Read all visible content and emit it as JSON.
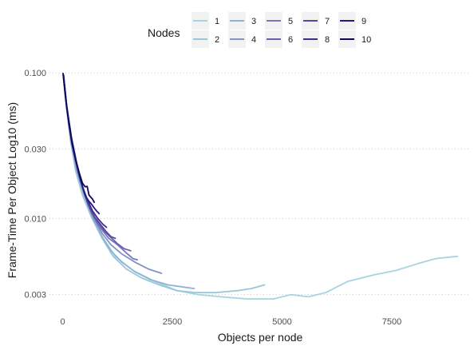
{
  "chart_data": {
    "type": "line",
    "xlabel": "Objects per node",
    "ylabel": "Frame-Time Per Object Log10 (ms)",
    "y_scale": "log10",
    "xlim": [
      -300,
      9300
    ],
    "ylim": [
      0.0026,
      0.104
    ],
    "x_ticks": [
      0,
      2500,
      5000,
      7500
    ],
    "x_tick_labels": [
      "0",
      "2500",
      "5000",
      "7500"
    ],
    "y_ticks": [
      0.003,
      0.01,
      0.03,
      0.1
    ],
    "y_tick_labels": [
      "0.003",
      "0.010",
      "0.030",
      "0.100"
    ],
    "grid": "horizontal-dotted",
    "legend": {
      "title": "Nodes",
      "position": "top"
    },
    "series": [
      {
        "name": "1",
        "color": "#a6d4e0",
        "points": [
          [
            20,
            0.092
          ],
          [
            80,
            0.06
          ],
          [
            180,
            0.035
          ],
          [
            300,
            0.022
          ],
          [
            450,
            0.015
          ],
          [
            650,
            0.0105
          ],
          [
            900,
            0.0075
          ],
          [
            1200,
            0.0055
          ],
          [
            1600,
            0.0044
          ],
          [
            2100,
            0.0037
          ],
          [
            2600,
            0.0032
          ],
          [
            3100,
            0.003
          ],
          [
            3600,
            0.0029
          ],
          [
            4200,
            0.0028
          ],
          [
            4800,
            0.0028
          ],
          [
            5200,
            0.003
          ],
          [
            5600,
            0.0029
          ],
          [
            6000,
            0.0031
          ],
          [
            6500,
            0.0037
          ],
          [
            7100,
            0.0041
          ],
          [
            7600,
            0.0044
          ],
          [
            8100,
            0.0049
          ],
          [
            8500,
            0.0053
          ],
          [
            9000,
            0.0055
          ]
        ]
      },
      {
        "name": "2",
        "color": "#9ac6db",
        "points": [
          [
            20,
            0.093
          ],
          [
            80,
            0.06
          ],
          [
            180,
            0.034
          ],
          [
            300,
            0.021
          ],
          [
            450,
            0.0145
          ],
          [
            650,
            0.0103
          ],
          [
            900,
            0.0073
          ],
          [
            1150,
            0.0055
          ],
          [
            1450,
            0.0045
          ],
          [
            1800,
            0.0039
          ],
          [
            2200,
            0.0035
          ],
          [
            2600,
            0.0032
          ],
          [
            3000,
            0.0031
          ],
          [
            3500,
            0.0031
          ],
          [
            4000,
            0.0032
          ],
          [
            4300,
            0.0033
          ],
          [
            4600,
            0.0035
          ]
        ]
      },
      {
        "name": "3",
        "color": "#8eb3d3",
        "points": [
          [
            20,
            0.094
          ],
          [
            90,
            0.058
          ],
          [
            200,
            0.033
          ],
          [
            330,
            0.021
          ],
          [
            500,
            0.0142
          ],
          [
            700,
            0.0098
          ],
          [
            900,
            0.0075
          ],
          [
            1100,
            0.006
          ],
          [
            1350,
            0.005
          ],
          [
            1650,
            0.0043
          ],
          [
            2000,
            0.0038
          ],
          [
            2400,
            0.0035
          ],
          [
            2700,
            0.0034
          ],
          [
            3000,
            0.0033
          ]
        ]
      },
      {
        "name": "4",
        "color": "#8293c7",
        "points": [
          [
            20,
            0.094
          ],
          [
            90,
            0.058
          ],
          [
            200,
            0.033
          ],
          [
            330,
            0.021
          ],
          [
            500,
            0.0144
          ],
          [
            700,
            0.0101
          ],
          [
            900,
            0.0079
          ],
          [
            1100,
            0.0066
          ],
          [
            1350,
            0.0057
          ],
          [
            1650,
            0.005
          ],
          [
            1950,
            0.0045
          ],
          [
            2250,
            0.0042
          ]
        ]
      },
      {
        "name": "5",
        "color": "#7b75b7",
        "points": [
          [
            20,
            0.095
          ],
          [
            90,
            0.058
          ],
          [
            200,
            0.034
          ],
          [
            330,
            0.022
          ],
          [
            480,
            0.0152
          ],
          [
            650,
            0.011
          ],
          [
            850,
            0.0087
          ],
          [
            1050,
            0.0073
          ],
          [
            1250,
            0.0066
          ],
          [
            1450,
            0.0058
          ],
          [
            1600,
            0.0053
          ],
          [
            1700,
            0.0052
          ]
        ]
      },
      {
        "name": "6",
        "color": "#6b5eb0",
        "points": [
          [
            20,
            0.095
          ],
          [
            90,
            0.058
          ],
          [
            200,
            0.035
          ],
          [
            330,
            0.023
          ],
          [
            470,
            0.0158
          ],
          [
            620,
            0.0119
          ],
          [
            780,
            0.0095
          ],
          [
            950,
            0.0082
          ],
          [
            1100,
            0.0074
          ],
          [
            1250,
            0.0067
          ],
          [
            1400,
            0.0062
          ],
          [
            1550,
            0.006
          ]
        ]
      },
      {
        "name": "7",
        "color": "#5547a1",
        "points": [
          [
            20,
            0.096
          ],
          [
            90,
            0.059
          ],
          [
            200,
            0.036
          ],
          [
            320,
            0.0235
          ],
          [
            450,
            0.0165
          ],
          [
            580,
            0.0125
          ],
          [
            720,
            0.0103
          ],
          [
            850,
            0.0092
          ],
          [
            980,
            0.0082
          ],
          [
            1100,
            0.0075
          ],
          [
            1200,
            0.0073
          ]
        ]
      },
      {
        "name": "8",
        "color": "#3e2d8f",
        "points": [
          [
            20,
            0.096
          ],
          [
            90,
            0.059
          ],
          [
            200,
            0.036
          ],
          [
            320,
            0.024
          ],
          [
            440,
            0.017
          ],
          [
            560,
            0.0135
          ],
          [
            680,
            0.0113
          ],
          [
            800,
            0.01
          ],
          [
            920,
            0.0091
          ],
          [
            1000,
            0.0087
          ]
        ]
      },
      {
        "name": "9",
        "color": "#241a7e",
        "points": [
          [
            20,
            0.097
          ],
          [
            90,
            0.06
          ],
          [
            190,
            0.037
          ],
          [
            300,
            0.025
          ],
          [
            410,
            0.0182
          ],
          [
            520,
            0.0143
          ],
          [
            600,
            0.0131
          ],
          [
            660,
            0.0125
          ],
          [
            720,
            0.0118
          ],
          [
            780,
            0.0112
          ],
          [
            830,
            0.0108
          ]
        ]
      },
      {
        "name": "10",
        "color": "#0d0a5c",
        "points": [
          [
            10,
            0.099
          ],
          [
            60,
            0.07
          ],
          [
            140,
            0.045
          ],
          [
            220,
            0.032
          ],
          [
            300,
            0.025
          ],
          [
            380,
            0.0205
          ],
          [
            450,
            0.0175
          ],
          [
            510,
            0.0165
          ],
          [
            560,
            0.0166
          ],
          [
            600,
            0.0145
          ],
          [
            640,
            0.014
          ],
          [
            680,
            0.0136
          ],
          [
            720,
            0.0129
          ]
        ]
      }
    ]
  }
}
